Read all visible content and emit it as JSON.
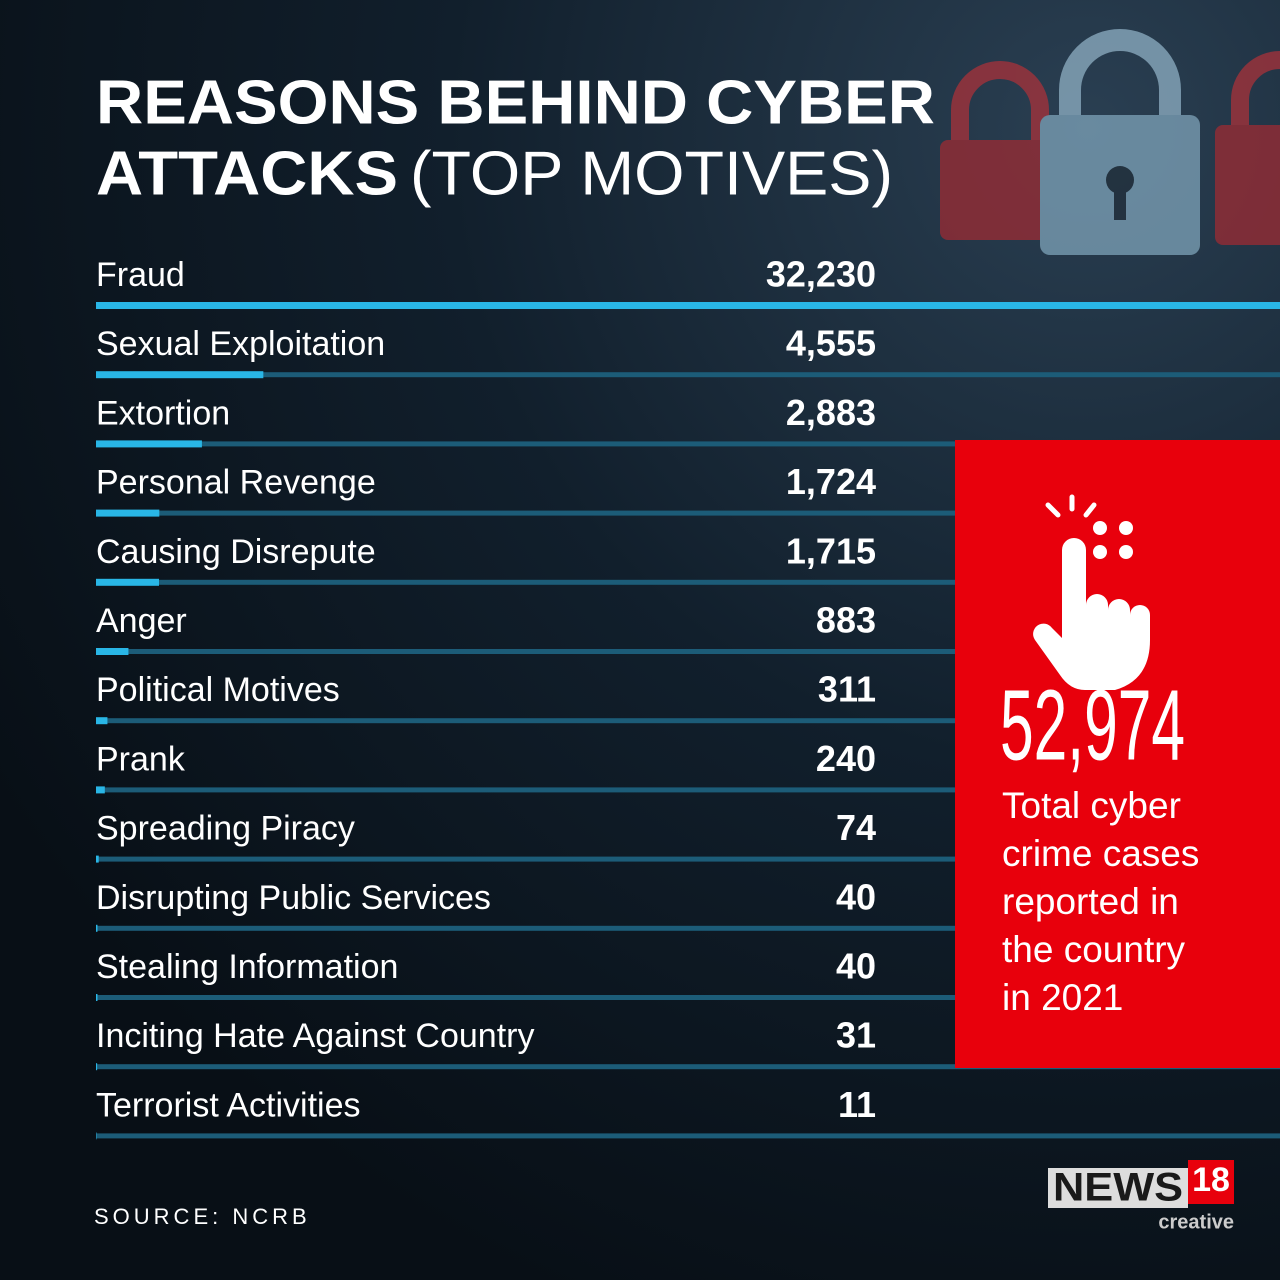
{
  "chart_data": {
    "type": "bar",
    "orientation": "horizontal",
    "title_lines": [
      "REASONS BEHIND CYBER",
      "ATTACKS"
    ],
    "subtitle": "(TOP MOTIVES)",
    "categories": [
      "Fraud",
      "Sexual Exploitation",
      "Extortion",
      "Personal Revenge",
      "Causing Disrepute",
      "Anger",
      "Political Motives",
      "Prank",
      "Spreading Piracy",
      "Disrupting Public Services",
      "Stealing Information",
      "Inciting Hate Against Country",
      "Terrorist Activities"
    ],
    "values": [
      32230,
      4555,
      2883,
      1724,
      1715,
      883,
      311,
      240,
      74,
      40,
      40,
      31,
      11
    ],
    "value_labels": [
      "32,230",
      "4,555",
      "2,883",
      "1,724",
      "1,715",
      "883",
      "311",
      "240",
      "74",
      "40",
      "40",
      "31",
      "11"
    ],
    "color": "#29b6e6",
    "track_color": "#1c5c78",
    "callout": {
      "value": 52974,
      "value_label": "52,974",
      "caption_lines": [
        "Total cyber",
        "crime cases",
        "reported in",
        "the country",
        "in 2021"
      ],
      "color": "#e8000c"
    },
    "source": "SOURCE: NCRB",
    "logo": {
      "name": "NEWS",
      "number": "18",
      "tagline": "creative"
    }
  }
}
